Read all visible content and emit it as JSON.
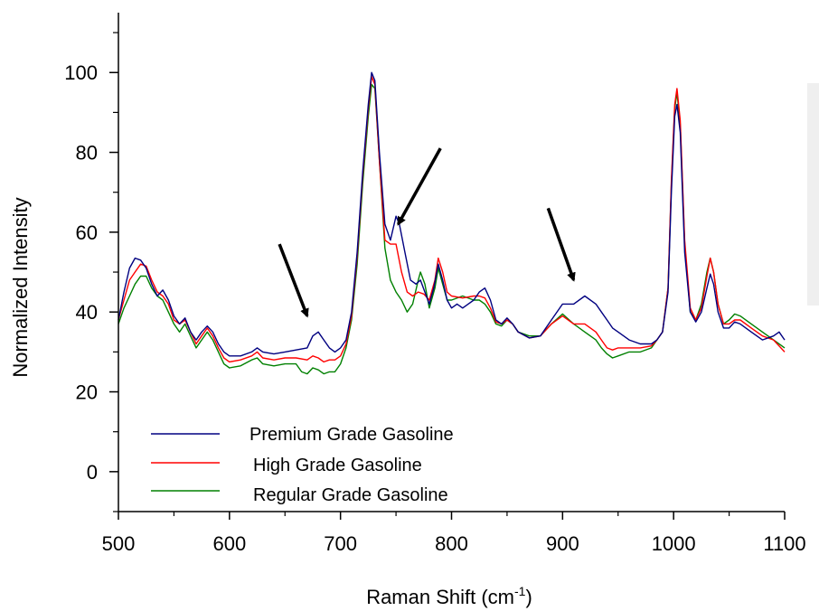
{
  "chart_data": {
    "type": "line",
    "xlabel": "Raman Shift (cm",
    "xlabel_sup": "-1",
    "xlabel_end": ")",
    "ylabel": "Normalized Intensity",
    "xlim": [
      500,
      1100
    ],
    "ylim": [
      -10,
      115
    ],
    "x_ticks": [
      500,
      600,
      700,
      800,
      900,
      1000,
      1100
    ],
    "x_tick_labels": [
      "500",
      "600",
      "700",
      "800",
      "900",
      "1000",
      "1100"
    ],
    "y_ticks": [
      0,
      20,
      40,
      60,
      80,
      100
    ],
    "y_tick_labels": [
      "0",
      "20",
      "40",
      "60",
      "80",
      "100"
    ],
    "grid": false,
    "legend_position": "bottom-left",
    "series": [
      {
        "name": "Premium Grade Gasoline",
        "color": "#000080",
        "points": [
          [
            500,
            38
          ],
          [
            505,
            45
          ],
          [
            510,
            51
          ],
          [
            515,
            53.5
          ],
          [
            520,
            53
          ],
          [
            525,
            51
          ],
          [
            530,
            47
          ],
          [
            535,
            44
          ],
          [
            540,
            45.5
          ],
          [
            545,
            43
          ],
          [
            550,
            39
          ],
          [
            555,
            37
          ],
          [
            560,
            38.5
          ],
          [
            565,
            35
          ],
          [
            570,
            33
          ],
          [
            575,
            35
          ],
          [
            580,
            36.5
          ],
          [
            585,
            35
          ],
          [
            590,
            32
          ],
          [
            595,
            30
          ],
          [
            600,
            29
          ],
          [
            610,
            29
          ],
          [
            620,
            30
          ],
          [
            625,
            31
          ],
          [
            630,
            30
          ],
          [
            640,
            29.5
          ],
          [
            650,
            30
          ],
          [
            660,
            30.5
          ],
          [
            670,
            31
          ],
          [
            675,
            34
          ],
          [
            680,
            35
          ],
          [
            685,
            33
          ],
          [
            690,
            31
          ],
          [
            695,
            30
          ],
          [
            700,
            31
          ],
          [
            705,
            33
          ],
          [
            710,
            40
          ],
          [
            715,
            55
          ],
          [
            720,
            75
          ],
          [
            725,
            92
          ],
          [
            728,
            100
          ],
          [
            731,
            98
          ],
          [
            735,
            80
          ],
          [
            740,
            62
          ],
          [
            745,
            58
          ],
          [
            750,
            64
          ],
          [
            753,
            62
          ],
          [
            758,
            55
          ],
          [
            763,
            48
          ],
          [
            768,
            47
          ],
          [
            772,
            48
          ],
          [
            776,
            45
          ],
          [
            780,
            42
          ],
          [
            784,
            46
          ],
          [
            788,
            52
          ],
          [
            792,
            48
          ],
          [
            796,
            43
          ],
          [
            800,
            41
          ],
          [
            805,
            42
          ],
          [
            810,
            41
          ],
          [
            815,
            42
          ],
          [
            820,
            43
          ],
          [
            825,
            45
          ],
          [
            830,
            46
          ],
          [
            835,
            43
          ],
          [
            840,
            38
          ],
          [
            845,
            37
          ],
          [
            850,
            38.5
          ],
          [
            855,
            37
          ],
          [
            860,
            35
          ],
          [
            870,
            33.5
          ],
          [
            880,
            34
          ],
          [
            890,
            38
          ],
          [
            900,
            42
          ],
          [
            910,
            42
          ],
          [
            920,
            44
          ],
          [
            930,
            42
          ],
          [
            935,
            40
          ],
          [
            940,
            38
          ],
          [
            945,
            36
          ],
          [
            950,
            35
          ],
          [
            960,
            33
          ],
          [
            970,
            32
          ],
          [
            980,
            32
          ],
          [
            985,
            33
          ],
          [
            990,
            35
          ],
          [
            995,
            45
          ],
          [
            998,
            70
          ],
          [
            1001,
            89
          ],
          [
            1003,
            92
          ],
          [
            1006,
            85
          ],
          [
            1010,
            55
          ],
          [
            1015,
            40
          ],
          [
            1020,
            37.5
          ],
          [
            1025,
            40
          ],
          [
            1030,
            46
          ],
          [
            1033,
            49.5
          ],
          [
            1036,
            47
          ],
          [
            1040,
            40
          ],
          [
            1045,
            36
          ],
          [
            1050,
            36
          ],
          [
            1055,
            37.5
          ],
          [
            1060,
            37
          ],
          [
            1070,
            35
          ],
          [
            1080,
            33
          ],
          [
            1090,
            34
          ],
          [
            1095,
            35
          ],
          [
            1100,
            33
          ]
        ]
      },
      {
        "name": "High Grade Gasoline",
        "color": "#ff0000",
        "points": [
          [
            500,
            38
          ],
          [
            505,
            43
          ],
          [
            510,
            48
          ],
          [
            515,
            50
          ],
          [
            520,
            52
          ],
          [
            525,
            51.5
          ],
          [
            530,
            48
          ],
          [
            535,
            45
          ],
          [
            540,
            44
          ],
          [
            545,
            42
          ],
          [
            550,
            38
          ],
          [
            555,
            37
          ],
          [
            560,
            38
          ],
          [
            565,
            35
          ],
          [
            570,
            32
          ],
          [
            575,
            34
          ],
          [
            580,
            36
          ],
          [
            585,
            34
          ],
          [
            590,
            31
          ],
          [
            595,
            28.5
          ],
          [
            600,
            27.5
          ],
          [
            610,
            28
          ],
          [
            620,
            29
          ],
          [
            625,
            30
          ],
          [
            630,
            28.5
          ],
          [
            640,
            28
          ],
          [
            650,
            28.5
          ],
          [
            660,
            28.5
          ],
          [
            670,
            28
          ],
          [
            675,
            29
          ],
          [
            680,
            28.5
          ],
          [
            685,
            27.5
          ],
          [
            690,
            28
          ],
          [
            695,
            28
          ],
          [
            700,
            29
          ],
          [
            705,
            32
          ],
          [
            710,
            39
          ],
          [
            715,
            54
          ],
          [
            720,
            74
          ],
          [
            725,
            91
          ],
          [
            728,
            99
          ],
          [
            731,
            97
          ],
          [
            735,
            78
          ],
          [
            740,
            58
          ],
          [
            745,
            57
          ],
          [
            750,
            57
          ],
          [
            755,
            50
          ],
          [
            760,
            45
          ],
          [
            765,
            44
          ],
          [
            770,
            45
          ],
          [
            775,
            44.5
          ],
          [
            780,
            43
          ],
          [
            785,
            48
          ],
          [
            788,
            53.5
          ],
          [
            792,
            50
          ],
          [
            796,
            45
          ],
          [
            800,
            44
          ],
          [
            810,
            43.5
          ],
          [
            820,
            44
          ],
          [
            825,
            44
          ],
          [
            830,
            43.5
          ],
          [
            835,
            41
          ],
          [
            840,
            37.5
          ],
          [
            845,
            37
          ],
          [
            850,
            38
          ],
          [
            855,
            37
          ],
          [
            860,
            35
          ],
          [
            870,
            33.5
          ],
          [
            880,
            34
          ],
          [
            890,
            37
          ],
          [
            900,
            39
          ],
          [
            910,
            37
          ],
          [
            920,
            37
          ],
          [
            930,
            35
          ],
          [
            935,
            33
          ],
          [
            940,
            31
          ],
          [
            945,
            30.5
          ],
          [
            950,
            31
          ],
          [
            960,
            31
          ],
          [
            970,
            31
          ],
          [
            980,
            31.5
          ],
          [
            985,
            33
          ],
          [
            990,
            35
          ],
          [
            995,
            46
          ],
          [
            998,
            73
          ],
          [
            1001,
            92
          ],
          [
            1003,
            96
          ],
          [
            1006,
            88
          ],
          [
            1010,
            58
          ],
          [
            1015,
            41
          ],
          [
            1020,
            38
          ],
          [
            1025,
            41
          ],
          [
            1030,
            49
          ],
          [
            1033,
            53.5
          ],
          [
            1036,
            50
          ],
          [
            1040,
            42
          ],
          [
            1045,
            37
          ],
          [
            1050,
            37
          ],
          [
            1055,
            38
          ],
          [
            1060,
            38
          ],
          [
            1070,
            36
          ],
          [
            1080,
            34
          ],
          [
            1090,
            33
          ],
          [
            1100,
            30
          ]
        ]
      },
      {
        "name": "Regular Grade Gasoline",
        "color": "#008000",
        "points": [
          [
            500,
            37
          ],
          [
            505,
            41
          ],
          [
            510,
            44
          ],
          [
            515,
            47
          ],
          [
            520,
            49
          ],
          [
            525,
            49
          ],
          [
            530,
            46
          ],
          [
            535,
            44
          ],
          [
            540,
            43
          ],
          [
            545,
            40
          ],
          [
            550,
            37
          ],
          [
            555,
            35
          ],
          [
            560,
            37
          ],
          [
            565,
            34
          ],
          [
            570,
            31
          ],
          [
            575,
            33
          ],
          [
            580,
            35
          ],
          [
            585,
            33
          ],
          [
            590,
            30
          ],
          [
            595,
            27
          ],
          [
            600,
            26
          ],
          [
            610,
            26.5
          ],
          [
            620,
            28
          ],
          [
            625,
            28.5
          ],
          [
            630,
            27
          ],
          [
            640,
            26.5
          ],
          [
            650,
            27
          ],
          [
            660,
            27
          ],
          [
            665,
            25
          ],
          [
            670,
            24.5
          ],
          [
            675,
            26
          ],
          [
            680,
            25.5
          ],
          [
            685,
            24.5
          ],
          [
            690,
            25
          ],
          [
            695,
            25
          ],
          [
            700,
            27
          ],
          [
            705,
            31
          ],
          [
            710,
            38
          ],
          [
            715,
            52
          ],
          [
            720,
            72
          ],
          [
            725,
            89
          ],
          [
            728,
            97
          ],
          [
            731,
            96
          ],
          [
            735,
            78
          ],
          [
            740,
            56
          ],
          [
            745,
            48
          ],
          [
            750,
            45
          ],
          [
            755,
            43
          ],
          [
            760,
            40
          ],
          [
            765,
            42
          ],
          [
            770,
            48
          ],
          [
            772,
            50
          ],
          [
            776,
            47
          ],
          [
            780,
            41
          ],
          [
            785,
            46
          ],
          [
            788,
            51
          ],
          [
            792,
            47
          ],
          [
            796,
            43
          ],
          [
            800,
            43
          ],
          [
            810,
            44
          ],
          [
            820,
            43
          ],
          [
            825,
            43
          ],
          [
            830,
            42
          ],
          [
            835,
            40
          ],
          [
            840,
            37
          ],
          [
            845,
            36.5
          ],
          [
            850,
            38
          ],
          [
            855,
            37
          ],
          [
            860,
            35
          ],
          [
            870,
            34
          ],
          [
            880,
            34
          ],
          [
            890,
            37
          ],
          [
            900,
            39.5
          ],
          [
            910,
            37
          ],
          [
            920,
            35
          ],
          [
            930,
            33
          ],
          [
            935,
            31
          ],
          [
            940,
            29.5
          ],
          [
            945,
            28.5
          ],
          [
            950,
            29
          ],
          [
            960,
            30
          ],
          [
            970,
            30
          ],
          [
            980,
            31
          ],
          [
            985,
            33
          ],
          [
            990,
            35
          ],
          [
            995,
            46
          ],
          [
            998,
            72
          ],
          [
            1001,
            91
          ],
          [
            1003,
            95
          ],
          [
            1006,
            87
          ],
          [
            1010,
            57
          ],
          [
            1015,
            40
          ],
          [
            1020,
            38
          ],
          [
            1025,
            42
          ],
          [
            1030,
            50
          ],
          [
            1033,
            53.5
          ],
          [
            1036,
            50
          ],
          [
            1040,
            42
          ],
          [
            1045,
            37
          ],
          [
            1050,
            38
          ],
          [
            1055,
            39.5
          ],
          [
            1060,
            39
          ],
          [
            1070,
            37
          ],
          [
            1080,
            35
          ],
          [
            1090,
            33
          ],
          [
            1100,
            31
          ]
        ]
      }
    ],
    "annotations": [
      {
        "type": "arrow",
        "from": [
          645,
          57
        ],
        "to": [
          670,
          39
        ]
      },
      {
        "type": "arrow",
        "from": [
          790,
          81
        ],
        "to": [
          752,
          62
        ]
      },
      {
        "type": "arrow",
        "from": [
          887,
          66
        ],
        "to": [
          910,
          48
        ]
      }
    ]
  }
}
